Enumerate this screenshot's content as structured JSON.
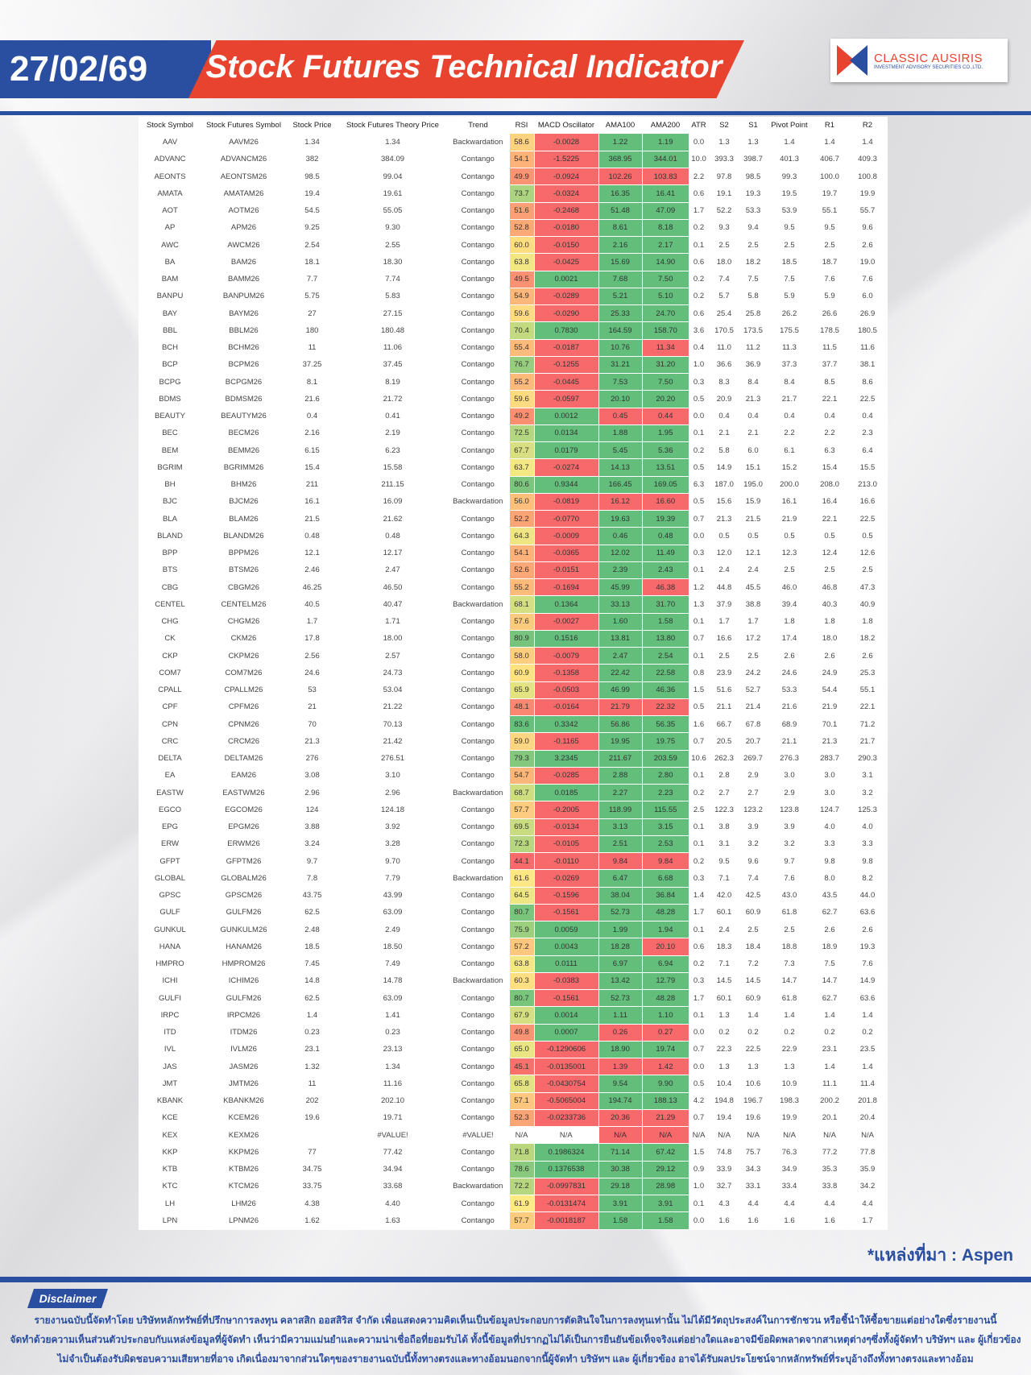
{
  "header": {
    "date": "27/02/69",
    "title": "Stock Futures Technical Indicator",
    "logo_name": "CLASSIC AUSIRIS",
    "logo_sub": "INVESTMENT ADVISORY SECURITIES CO.,LTD."
  },
  "colors": {
    "brand_blue": "#2b4fa0",
    "brand_red": "#e8432f",
    "cell_green": "#63be7b",
    "cell_red": "#f8696b",
    "cell_yellow": "#ffeb84"
  },
  "table": {
    "columns": [
      "Stock Symbol",
      "Stock Futures Symbol",
      "Stock Price",
      "Stock Futures Theory Price",
      "Trend",
      "RSI",
      "MACD Oscillator",
      "AMA100",
      "AMA200",
      "ATR",
      "S2",
      "S1",
      "Pivot Point",
      "R1",
      "R2"
    ],
    "rows": [
      [
        "AAV",
        "AAVM26",
        "1.34",
        "1.34",
        "Backwardation",
        "58.6",
        "-0.0028",
        "1.22",
        "1.19",
        "0.0",
        "1.3",
        "1.3",
        "1.4",
        "1.4",
        "1.4"
      ],
      [
        "ADVANC",
        "ADVANCM26",
        "382",
        "384.09",
        "Contango",
        "54.1",
        "-1.5225",
        "368.95",
        "344.01",
        "10.0",
        "393.3",
        "398.7",
        "401.3",
        "406.7",
        "409.3"
      ],
      [
        "AEONTS",
        "AEONTSM26",
        "98.5",
        "99.04",
        "Contango",
        "49.9",
        "-0.0924",
        "102.26",
        "103.83",
        "2.2",
        "97.8",
        "98.5",
        "99.3",
        "100.0",
        "100.8"
      ],
      [
        "AMATA",
        "AMATAM26",
        "19.4",
        "19.61",
        "Contango",
        "73.7",
        "-0.0324",
        "16.35",
        "16.41",
        "0.6",
        "19.1",
        "19.3",
        "19.5",
        "19.7",
        "19.9"
      ],
      [
        "AOT",
        "AOTM26",
        "54.5",
        "55.05",
        "Contango",
        "51.6",
        "-0.2468",
        "51.48",
        "47.09",
        "1.7",
        "52.2",
        "53.3",
        "53.9",
        "55.1",
        "55.7"
      ],
      [
        "AP",
        "APM26",
        "9.25",
        "9.30",
        "Contango",
        "52.8",
        "-0.0180",
        "8.61",
        "8.18",
        "0.2",
        "9.3",
        "9.4",
        "9.5",
        "9.5",
        "9.6"
      ],
      [
        "AWC",
        "AWCM26",
        "2.54",
        "2.55",
        "Contango",
        "60.0",
        "-0.0150",
        "2.16",
        "2.17",
        "0.1",
        "2.5",
        "2.5",
        "2.5",
        "2.5",
        "2.6"
      ],
      [
        "BA",
        "BAM26",
        "18.1",
        "18.30",
        "Contango",
        "63.8",
        "-0.0425",
        "15.69",
        "14.90",
        "0.6",
        "18.0",
        "18.2",
        "18.5",
        "18.7",
        "19.0"
      ],
      [
        "BAM",
        "BAMM26",
        "7.7",
        "7.74",
        "Contango",
        "49.5",
        "0.0021",
        "7.68",
        "7.50",
        "0.2",
        "7.4",
        "7.5",
        "7.5",
        "7.6",
        "7.6"
      ],
      [
        "BANPU",
        "BANPUM26",
        "5.75",
        "5.83",
        "Contango",
        "54.9",
        "-0.0289",
        "5.21",
        "5.10",
        "0.2",
        "5.7",
        "5.8",
        "5.9",
        "5.9",
        "6.0"
      ],
      [
        "BAY",
        "BAYM26",
        "27",
        "27.15",
        "Contango",
        "59.6",
        "-0.0290",
        "25.33",
        "24.70",
        "0.6",
        "25.4",
        "25.8",
        "26.2",
        "26.6",
        "26.9"
      ],
      [
        "BBL",
        "BBLM26",
        "180",
        "180.48",
        "Contango",
        "70.4",
        "0.7830",
        "164.59",
        "158.70",
        "3.6",
        "170.5",
        "173.5",
        "175.5",
        "178.5",
        "180.5"
      ],
      [
        "BCH",
        "BCHM26",
        "11",
        "11.06",
        "Contango",
        "55.4",
        "-0.0187",
        "10.76",
        "11.34",
        "0.4",
        "11.0",
        "11.2",
        "11.3",
        "11.5",
        "11.6"
      ],
      [
        "BCP",
        "BCPM26",
        "37.25",
        "37.45",
        "Contango",
        "76.7",
        "-0.1255",
        "31.21",
        "31.20",
        "1.0",
        "36.6",
        "36.9",
        "37.3",
        "37.7",
        "38.1"
      ],
      [
        "BCPG",
        "BCPGM26",
        "8.1",
        "8.19",
        "Contango",
        "55.2",
        "-0.0445",
        "7.53",
        "7.50",
        "0.3",
        "8.3",
        "8.4",
        "8.4",
        "8.5",
        "8.6"
      ],
      [
        "BDMS",
        "BDMSM26",
        "21.6",
        "21.72",
        "Contango",
        "59.6",
        "-0.0597",
        "20.10",
        "20.20",
        "0.5",
        "20.9",
        "21.3",
        "21.7",
        "22.1",
        "22.5"
      ],
      [
        "BEAUTY",
        "BEAUTYM26",
        "0.4",
        "0.41",
        "Contango",
        "49.2",
        "0.0012",
        "0.45",
        "0.44",
        "0.0",
        "0.4",
        "0.4",
        "0.4",
        "0.4",
        "0.4"
      ],
      [
        "BEC",
        "BECM26",
        "2.16",
        "2.19",
        "Contango",
        "72.5",
        "0.0134",
        "1.88",
        "1.95",
        "0.1",
        "2.1",
        "2.1",
        "2.2",
        "2.2",
        "2.3"
      ],
      [
        "BEM",
        "BEMM26",
        "6.15",
        "6.23",
        "Contango",
        "67.7",
        "0.0179",
        "5.45",
        "5.36",
        "0.2",
        "5.8",
        "6.0",
        "6.1",
        "6.3",
        "6.4"
      ],
      [
        "BGRIM",
        "BGRIMM26",
        "15.4",
        "15.58",
        "Contango",
        "63.7",
        "-0.0274",
        "14.13",
        "13.51",
        "0.5",
        "14.9",
        "15.1",
        "15.2",
        "15.4",
        "15.5"
      ],
      [
        "BH",
        "BHM26",
        "211",
        "211.15",
        "Contango",
        "80.6",
        "0.9344",
        "166.45",
        "169.05",
        "6.3",
        "187.0",
        "195.0",
        "200.0",
        "208.0",
        "213.0"
      ],
      [
        "BJC",
        "BJCM26",
        "16.1",
        "16.09",
        "Backwardation",
        "56.0",
        "-0.0819",
        "16.12",
        "16.60",
        "0.5",
        "15.6",
        "15.9",
        "16.1",
        "16.4",
        "16.6"
      ],
      [
        "BLA",
        "BLAM26",
        "21.5",
        "21.62",
        "Contango",
        "52.2",
        "-0.0770",
        "19.63",
        "19.39",
        "0.7",
        "21.3",
        "21.5",
        "21.9",
        "22.1",
        "22.5"
      ],
      [
        "BLAND",
        "BLANDM26",
        "0.48",
        "0.48",
        "Contango",
        "64.3",
        "-0.0009",
        "0.46",
        "0.48",
        "0.0",
        "0.5",
        "0.5",
        "0.5",
        "0.5",
        "0.5"
      ],
      [
        "BPP",
        "BPPM26",
        "12.1",
        "12.17",
        "Contango",
        "54.1",
        "-0.0365",
        "12.02",
        "11.49",
        "0.3",
        "12.0",
        "12.1",
        "12.3",
        "12.4",
        "12.6"
      ],
      [
        "BTS",
        "BTSM26",
        "2.46",
        "2.47",
        "Contango",
        "52.6",
        "-0.0151",
        "2.39",
        "2.43",
        "0.1",
        "2.4",
        "2.4",
        "2.5",
        "2.5",
        "2.5"
      ],
      [
        "CBG",
        "CBGM26",
        "46.25",
        "46.50",
        "Contango",
        "55.2",
        "-0.1694",
        "45.99",
        "46.38",
        "1.2",
        "44.8",
        "45.5",
        "46.0",
        "46.8",
        "47.3"
      ],
      [
        "CENTEL",
        "CENTELM26",
        "40.5",
        "40.47",
        "Backwardation",
        "68.1",
        "0.1364",
        "33.13",
        "31.70",
        "1.3",
        "37.9",
        "38.8",
        "39.4",
        "40.3",
        "40.9"
      ],
      [
        "CHG",
        "CHGM26",
        "1.7",
        "1.71",
        "Contango",
        "57.6",
        "-0.0027",
        "1.60",
        "1.58",
        "0.1",
        "1.7",
        "1.7",
        "1.8",
        "1.8",
        "1.8"
      ],
      [
        "CK",
        "CKM26",
        "17.8",
        "18.00",
        "Contango",
        "80.9",
        "0.1516",
        "13.81",
        "13.80",
        "0.7",
        "16.6",
        "17.2",
        "17.4",
        "18.0",
        "18.2"
      ],
      [
        "CKP",
        "CKPM26",
        "2.56",
        "2.57",
        "Contango",
        "58.0",
        "-0.0079",
        "2.47",
        "2.54",
        "0.1",
        "2.5",
        "2.5",
        "2.6",
        "2.6",
        "2.6"
      ],
      [
        "COM7",
        "COM7M26",
        "24.6",
        "24.73",
        "Contango",
        "60.9",
        "-0.1358",
        "22.42",
        "22.58",
        "0.8",
        "23.9",
        "24.2",
        "24.6",
        "24.9",
        "25.3"
      ],
      [
        "CPALL",
        "CPALLM26",
        "53",
        "53.04",
        "Contango",
        "65.9",
        "-0.0503",
        "46.99",
        "46.36",
        "1.5",
        "51.6",
        "52.7",
        "53.3",
        "54.4",
        "55.1"
      ],
      [
        "CPF",
        "CPFM26",
        "21",
        "21.22",
        "Contango",
        "48.1",
        "-0.0164",
        "21.79",
        "22.32",
        "0.5",
        "21.1",
        "21.4",
        "21.6",
        "21.9",
        "22.1"
      ],
      [
        "CPN",
        "CPNM26",
        "70",
        "70.13",
        "Contango",
        "83.6",
        "0.3342",
        "56.86",
        "56.35",
        "1.6",
        "66.7",
        "67.8",
        "68.9",
        "70.1",
        "71.2"
      ],
      [
        "CRC",
        "CRCM26",
        "21.3",
        "21.42",
        "Contango",
        "59.0",
        "-0.1165",
        "19.95",
        "19.75",
        "0.7",
        "20.5",
        "20.7",
        "21.1",
        "21.3",
        "21.7"
      ],
      [
        "DELTA",
        "DELTAM26",
        "276",
        "276.51",
        "Contango",
        "79.3",
        "3.2345",
        "211.67",
        "203.59",
        "10.6",
        "262.3",
        "269.7",
        "276.3",
        "283.7",
        "290.3"
      ],
      [
        "EA",
        "EAM26",
        "3.08",
        "3.10",
        "Contango",
        "54.7",
        "-0.0285",
        "2.88",
        "2.80",
        "0.1",
        "2.8",
        "2.9",
        "3.0",
        "3.0",
        "3.1"
      ],
      [
        "EASTW",
        "EASTWM26",
        "2.96",
        "2.96",
        "Backwardation",
        "68.7",
        "0.0185",
        "2.27",
        "2.23",
        "0.2",
        "2.7",
        "2.7",
        "2.9",
        "3.0",
        "3.2"
      ],
      [
        "EGCO",
        "EGCOM26",
        "124",
        "124.18",
        "Contango",
        "57.7",
        "-0.2005",
        "118.99",
        "115.55",
        "2.5",
        "122.3",
        "123.2",
        "123.8",
        "124.7",
        "125.3"
      ],
      [
        "EPG",
        "EPGM26",
        "3.88",
        "3.92",
        "Contango",
        "69.5",
        "-0.0134",
        "3.13",
        "3.15",
        "0.1",
        "3.8",
        "3.9",
        "3.9",
        "4.0",
        "4.0"
      ],
      [
        "ERW",
        "ERWM26",
        "3.24",
        "3.28",
        "Contango",
        "72.3",
        "-0.0105",
        "2.51",
        "2.53",
        "0.1",
        "3.1",
        "3.2",
        "3.2",
        "3.3",
        "3.3"
      ],
      [
        "GFPT",
        "GFPTM26",
        "9.7",
        "9.70",
        "Contango",
        "44.1",
        "-0.0110",
        "9.84",
        "9.84",
        "0.2",
        "9.5",
        "9.6",
        "9.7",
        "9.8",
        "9.8"
      ],
      [
        "GLOBAL",
        "GLOBALM26",
        "7.8",
        "7.79",
        "Backwardation",
        "61.6",
        "-0.0269",
        "6.47",
        "6.68",
        "0.3",
        "7.1",
        "7.4",
        "7.6",
        "8.0",
        "8.2"
      ],
      [
        "GPSC",
        "GPSCM26",
        "43.75",
        "43.99",
        "Contango",
        "64.5",
        "-0.1596",
        "38.04",
        "36.84",
        "1.4",
        "42.0",
        "42.5",
        "43.0",
        "43.5",
        "44.0"
      ],
      [
        "GULF",
        "GULFM26",
        "62.5",
        "63.09",
        "Contango",
        "80.7",
        "-0.1561",
        "52.73",
        "48.28",
        "1.7",
        "60.1",
        "60.9",
        "61.8",
        "62.7",
        "63.6"
      ],
      [
        "GUNKUL",
        "GUNKULM26",
        "2.48",
        "2.49",
        "Contango",
        "75.9",
        "0.0059",
        "1.99",
        "1.94",
        "0.1",
        "2.4",
        "2.5",
        "2.5",
        "2.6",
        "2.6"
      ],
      [
        "HANA",
        "HANAM26",
        "18.5",
        "18.50",
        "Contango",
        "57.2",
        "0.0043",
        "18.28",
        "20.10",
        "0.6",
        "18.3",
        "18.4",
        "18.8",
        "18.9",
        "19.3"
      ],
      [
        "HMPRO",
        "HMPROM26",
        "7.45",
        "7.49",
        "Contango",
        "63.8",
        "0.0111",
        "6.97",
        "6.94",
        "0.2",
        "7.1",
        "7.2",
        "7.3",
        "7.5",
        "7.6"
      ],
      [
        "ICHI",
        "ICHIM26",
        "14.8",
        "14.78",
        "Backwardation",
        "60.3",
        "-0.0383",
        "13.42",
        "12.79",
        "0.3",
        "14.5",
        "14.5",
        "14.7",
        "14.7",
        "14.9"
      ],
      [
        "GULFI",
        "GULFM26",
        "62.5",
        "63.09",
        "Contango",
        "80.7",
        "-0.1561",
        "52.73",
        "48.28",
        "1.7",
        "60.1",
        "60.9",
        "61.8",
        "62.7",
        "63.6"
      ],
      [
        "IRPC",
        "IRPCM26",
        "1.4",
        "1.41",
        "Contango",
        "67.9",
        "0.0014",
        "1.11",
        "1.10",
        "0.1",
        "1.3",
        "1.4",
        "1.4",
        "1.4",
        "1.4"
      ],
      [
        "ITD",
        "ITDM26",
        "0.23",
        "0.23",
        "Contango",
        "49.8",
        "0.0007",
        "0.26",
        "0.27",
        "0.0",
        "0.2",
        "0.2",
        "0.2",
        "0.2",
        "0.2"
      ],
      [
        "IVL",
        "IVLM26",
        "23.1",
        "23.13",
        "Contango",
        "65.0",
        "-0.1290606",
        "18.90",
        "19.74",
        "0.7",
        "22.3",
        "22.5",
        "22.9",
        "23.1",
        "23.5"
      ],
      [
        "JAS",
        "JASM26",
        "1.32",
        "1.34",
        "Contango",
        "45.1",
        "-0.0135001",
        "1.39",
        "1.42",
        "0.0",
        "1.3",
        "1.3",
        "1.3",
        "1.4",
        "1.4"
      ],
      [
        "JMT",
        "JMTM26",
        "11",
        "11.16",
        "Contango",
        "65.8",
        "-0.0430754",
        "9.54",
        "9.90",
        "0.5",
        "10.4",
        "10.6",
        "10.9",
        "11.1",
        "11.4"
      ],
      [
        "KBANK",
        "KBANKM26",
        "202",
        "202.10",
        "Contango",
        "57.1",
        "-0.5065004",
        "194.74",
        "188.13",
        "4.2",
        "194.8",
        "196.7",
        "198.3",
        "200.2",
        "201.8"
      ],
      [
        "KCE",
        "KCEM26",
        "19.6",
        "19.71",
        "Contango",
        "52.3",
        "-0.0233736",
        "20.36",
        "21.29",
        "0.7",
        "19.4",
        "19.6",
        "19.9",
        "20.1",
        "20.4"
      ],
      [
        "KEX",
        "KEXM26",
        "",
        "#VALUE!",
        "#VALUE!",
        "N/A",
        "N/A",
        "N/A",
        "N/A",
        "N/A",
        "N/A",
        "N/A",
        "N/A",
        "N/A",
        "N/A"
      ],
      [
        "KKP",
        "KKPM26",
        "77",
        "77.42",
        "Contango",
        "71.8",
        "0.1986324",
        "71.14",
        "67.42",
        "1.5",
        "74.8",
        "75.7",
        "76.3",
        "77.2",
        "77.8"
      ],
      [
        "KTB",
        "KTBM26",
        "34.75",
        "34.94",
        "Contango",
        "78.6",
        "0.1376538",
        "30.38",
        "29.12",
        "0.9",
        "33.9",
        "34.3",
        "34.9",
        "35.3",
        "35.9"
      ],
      [
        "KTC",
        "KTCM26",
        "33.75",
        "33.68",
        "Backwardation",
        "72.2",
        "-0.0997831",
        "29.18",
        "28.98",
        "1.0",
        "32.7",
        "33.1",
        "33.4",
        "33.8",
        "34.2"
      ],
      [
        "LH",
        "LHM26",
        "4.38",
        "4.40",
        "Contango",
        "61.9",
        "-0.0131474",
        "3.91",
        "3.91",
        "0.1",
        "4.3",
        "4.4",
        "4.4",
        "4.4",
        "4.4"
      ],
      [
        "LPN",
        "LPNM26",
        "1.62",
        "1.63",
        "Contango",
        "57.7",
        "-0.0018187",
        "1.58",
        "1.58",
        "0.0",
        "1.6",
        "1.6",
        "1.6",
        "1.6",
        "1.7"
      ]
    ]
  },
  "source": "*แหล่งที่มา : Aspen",
  "disclaimer": {
    "label": "Disclaimer",
    "lines": [
      "รายงานฉบับนี้จัดทำโดย บริษัทหลักทรัพย์ที่ปรึกษาการลงทุน คลาสสิก ออสสิริส จำกัด  เพื่อแสดงความคิดเห็นเป็นข้อมูลประกอบการตัดสินใจในการลงทุนเท่านั้น ไม่ได้มีวัตถุประสงค์ในการชักชวน หรือชี้นำให้ซื้อขายแต่อย่างใดซึ่งรายงานนี้",
      "จัดทำด้วยความเห็นส่วนตัวประกอบกับแหล่งข้อมูลที่ผู้จัดทำ เห็นว่ามีความแม่นยำและความน่าเชื่อถือที่ยอมรับได้ ทั้งนี้ข้อมูลที่ปรากฏไม่ได้เป็นการยืนยันข้อเท็จจริงแต่อย่างใดและอาจมีข้อผิดพลาดจากสาเหตุต่างๆซึ่งทั้งผู้จัดทำ  บริษัทฯ  และ  ผู้เกี่ยวข้อง",
      "ไม่จำเป็นต้องรับผิดชอบความเสียหายที่อาจ เกิดเนื่องมาจากส่วนใดๆของรายงานฉบับนี้ทั้งทางตรงและทางอ้อมนอกจากนี้ผู้จัดทำ บริษัทฯ และ ผู้เกี่ยวข้อง  อาจได้รับผลประโยชน์จากหลักทรัพย์ที่ระบุอ้างถึงทั้งทางตรงและทางอ้อม"
    ]
  }
}
